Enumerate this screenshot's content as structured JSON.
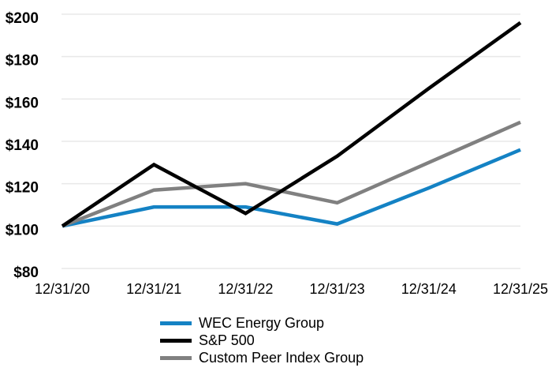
{
  "chart_data": {
    "type": "line",
    "title": "",
    "xlabel": "",
    "ylabel": "",
    "x": [
      "12/31/20",
      "12/31/21",
      "12/31/22",
      "12/31/23",
      "12/31/24",
      "12/31/25"
    ],
    "series": [
      {
        "name": "WEC Energy Group",
        "color": "#1482c4",
        "z": 1,
        "values": [
          100,
          109,
          109,
          101,
          118,
          136
        ]
      },
      {
        "name": "S&P 500",
        "color": "#000000",
        "z": 3,
        "values": [
          100,
          129,
          106,
          133,
          165,
          196
        ]
      },
      {
        "name": "Custom Peer Index Group",
        "color": "#808080",
        "z": 2,
        "values": [
          100,
          117,
          120,
          111,
          130,
          149
        ]
      }
    ],
    "ylim": [
      80,
      200
    ],
    "ytick_step": 20,
    "ytick_prefix": "$",
    "grid": "horizontal-only",
    "legend_position": "bottom-left-of-center"
  },
  "colors": {
    "background": "#ffffff",
    "gridline": "#e8e8e8",
    "text": "#000000"
  }
}
